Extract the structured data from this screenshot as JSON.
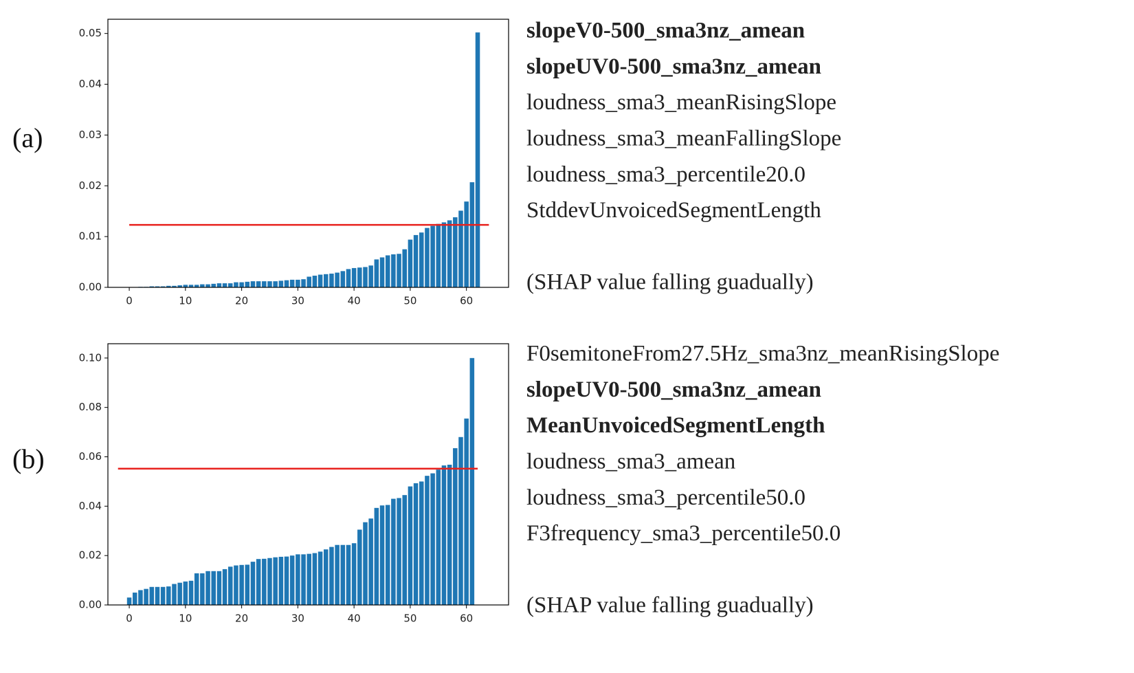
{
  "chart_data": [
    {
      "type": "bar",
      "panel": "(a)",
      "color": "#1f77b4",
      "values": [
        0,
        0,
        0.0001,
        0.0001,
        0.0002,
        0.0002,
        0.0002,
        0.0003,
        0.0003,
        0.0004,
        0.0005,
        0.0005,
        0.0005,
        0.0006,
        0.0006,
        0.0007,
        0.0008,
        0.0008,
        0.0008,
        0.001,
        0.001,
        0.0011,
        0.0012,
        0.0012,
        0.0012,
        0.0012,
        0.0012,
        0.0013,
        0.0014,
        0.0015,
        0.0015,
        0.0016,
        0.0021,
        0.0023,
        0.0025,
        0.0026,
        0.0027,
        0.0029,
        0.0032,
        0.0036,
        0.0038,
        0.0039,
        0.004,
        0.0043,
        0.0055,
        0.0059,
        0.0063,
        0.0065,
        0.0066,
        0.0075,
        0.0094,
        0.0103,
        0.0108,
        0.0117,
        0.0121,
        0.0125,
        0.0128,
        0.0132,
        0.0138,
        0.0151,
        0.0169,
        0.0207,
        0.0502
      ],
      "xlim": [
        -3.8,
        67.5
      ],
      "xticks": [
        0,
        10,
        20,
        30,
        40,
        50,
        60
      ],
      "ylim": [
        0,
        0.0528
      ],
      "yticks": [
        {
          "value": 0,
          "label": "0.00"
        },
        0.01,
        0.02,
        0.03,
        0.04,
        0.05
      ],
      "reference_line": {
        "value": 0.0123,
        "x": [
          0,
          64
        ],
        "color": "#e8211d"
      },
      "features": [
        {
          "text": "slopeV0-500_sma3nz_amean",
          "bold": true
        },
        {
          "text": "slopeUV0-500_sma3nz_amean",
          "bold": true
        },
        {
          "text": "loudness_sma3_meanRisingSlope",
          "bold": false
        },
        {
          "text": "loudness_sma3_meanFallingSlope",
          "bold": false
        },
        {
          "text": "loudness_sma3_percentile20.0",
          "bold": false
        },
        {
          "text": "StddevUnvoicedSegmentLength",
          "bold": false
        }
      ],
      "note": "(SHAP value falling guadually)"
    },
    {
      "type": "bar",
      "panel": "(b)",
      "color": "#1f77b4",
      "values": [
        0.003,
        0.005,
        0.006,
        0.0065,
        0.0073,
        0.0073,
        0.0073,
        0.0075,
        0.0085,
        0.009,
        0.0095,
        0.0098,
        0.0128,
        0.0128,
        0.0137,
        0.0137,
        0.0137,
        0.0145,
        0.0155,
        0.016,
        0.0162,
        0.0163,
        0.0175,
        0.0186,
        0.0187,
        0.019,
        0.0193,
        0.0195,
        0.0196,
        0.02,
        0.0205,
        0.0205,
        0.0207,
        0.021,
        0.0216,
        0.0225,
        0.0235,
        0.0243,
        0.0243,
        0.0243,
        0.025,
        0.0305,
        0.0335,
        0.035,
        0.0393,
        0.0403,
        0.0405,
        0.043,
        0.0433,
        0.0445,
        0.048,
        0.0493,
        0.05,
        0.0523,
        0.0533,
        0.0548,
        0.0565,
        0.0568,
        0.0635,
        0.068,
        0.0755,
        0.1
      ],
      "xlim": [
        -3.8,
        67.5
      ],
      "xticks": [
        0,
        10,
        20,
        30,
        40,
        50,
        60
      ],
      "ylim": [
        0,
        0.1058
      ],
      "yticks": [
        {
          "value": 0,
          "label": "0.00"
        },
        0.02,
        0.04,
        0.06,
        0.08,
        {
          "value": 0.1,
          "label": "0.10"
        }
      ],
      "reference_line": {
        "value": 0.0552,
        "x": [
          -2,
          62
        ],
        "color": "#e8211d"
      },
      "features": [
        {
          "text": "F0semitoneFrom27.5Hz_sma3nz_meanRisingSlope",
          "bold": false
        },
        {
          "text": "slopeUV0-500_sma3nz_amean",
          "bold": true
        },
        {
          "text": "MeanUnvoicedSegmentLength",
          "bold": true
        },
        {
          "text": "loudness_sma3_amean",
          "bold": false
        },
        {
          "text": "loudness_sma3_percentile50.0",
          "bold": false
        },
        {
          "text": "F3frequency_sma3_percentile50.0",
          "bold": false
        }
      ],
      "note": "(SHAP value falling guadually)"
    }
  ]
}
